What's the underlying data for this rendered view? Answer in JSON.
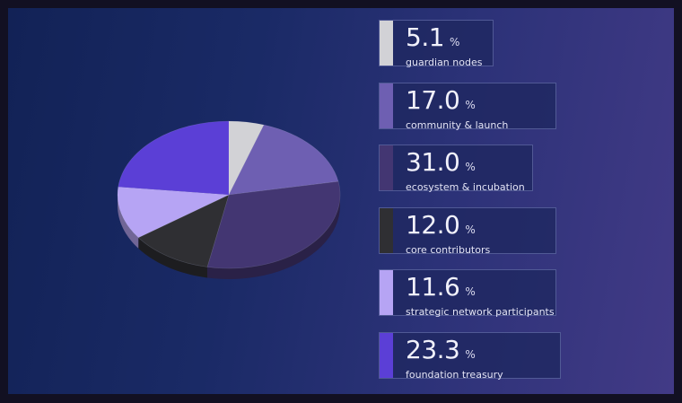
{
  "chart_data": {
    "type": "pie",
    "title": "",
    "unit": "%",
    "slices": [
      {
        "label": "guardian nodes",
        "value": 5.1,
        "display": "5.1",
        "color": "#d2d2d6"
      },
      {
        "label": "community & launch",
        "value": 17.0,
        "display": "17.0",
        "color": "#6e5fb2"
      },
      {
        "label": "ecosystem & incubation",
        "value": 31.0,
        "display": "31.0",
        "color": "#433672"
      },
      {
        "label": "core contributors",
        "value": 12.0,
        "display": "12.0",
        "color": "#2f2f33"
      },
      {
        "label": "strategic network participants",
        "value": 11.6,
        "display": "11.6",
        "color": "#b6a4f4"
      },
      {
        "label": "foundation treasury",
        "value": 23.3,
        "display": "23.3",
        "color": "#5b3fd6"
      }
    ],
    "legend_position": "right"
  }
}
